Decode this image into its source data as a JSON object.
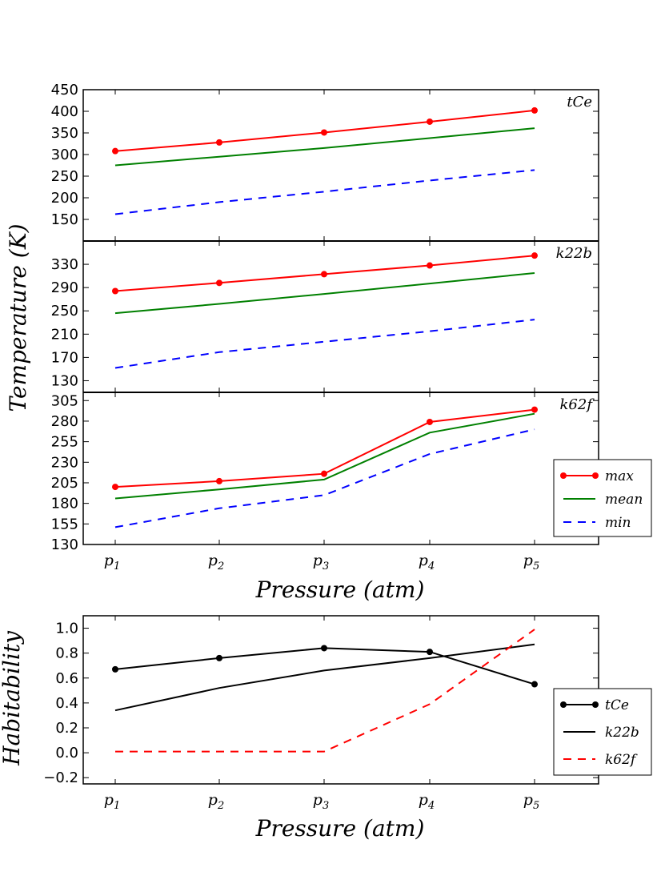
{
  "chart_data": [
    {
      "type": "line",
      "title": "",
      "panel_label": "tCe",
      "xlabel": "",
      "ylabel": "",
      "categories": [
        "p1",
        "p2",
        "p3",
        "p4",
        "p5"
      ],
      "ylim": [
        100,
        450
      ],
      "yticks": [
        150,
        200,
        250,
        300,
        350,
        400,
        450
      ],
      "series": [
        {
          "name": "max",
          "values": [
            308,
            328,
            351,
            376,
            402
          ],
          "color": "#ff0000",
          "style": "solid-marker"
        },
        {
          "name": "mean",
          "values": [
            275,
            295,
            315,
            338,
            361
          ],
          "color": "#008000",
          "style": "solid"
        },
        {
          "name": "min",
          "values": [
            162,
            190,
            214,
            240,
            264
          ],
          "color": "#0000ff",
          "style": "dashed"
        }
      ]
    },
    {
      "type": "line",
      "title": "",
      "panel_label": "k22b",
      "xlabel": "",
      "ylabel": "Temperature (K)",
      "categories": [
        "p1",
        "p2",
        "p3",
        "p4",
        "p5"
      ],
      "ylim": [
        110,
        370
      ],
      "yticks": [
        130,
        170,
        210,
        250,
        290,
        330
      ],
      "series": [
        {
          "name": "max",
          "values": [
            284,
            298,
            313,
            328,
            345
          ],
          "color": "#ff0000",
          "style": "solid-marker"
        },
        {
          "name": "mean",
          "values": [
            246,
            262,
            279,
            297,
            315
          ],
          "color": "#008000",
          "style": "solid"
        },
        {
          "name": "min",
          "values": [
            152,
            179,
            197,
            215,
            235
          ],
          "color": "#0000ff",
          "style": "dashed"
        }
      ]
    },
    {
      "type": "line",
      "title": "",
      "panel_label": "k62f",
      "xlabel": "Pressure (atm)",
      "ylabel": "",
      "categories": [
        "p1",
        "p2",
        "p3",
        "p4",
        "p5"
      ],
      "ylim": [
        130,
        315
      ],
      "yticks": [
        130,
        155,
        180,
        205,
        230,
        255,
        280,
        305
      ],
      "legend": "lower-right",
      "series": [
        {
          "name": "max",
          "values": [
            200,
            207,
            216,
            279,
            294
          ],
          "color": "#ff0000",
          "style": "solid-marker"
        },
        {
          "name": "mean",
          "values": [
            186,
            197,
            209,
            266,
            289
          ],
          "color": "#008000",
          "style": "solid"
        },
        {
          "name": "min",
          "values": [
            151,
            174,
            190,
            240,
            270
          ],
          "color": "#0000ff",
          "style": "dashed"
        }
      ]
    },
    {
      "type": "line",
      "title": "",
      "xlabel": "Pressure (atm)",
      "ylabel": "Habitability",
      "categories": [
        "p1",
        "p2",
        "p3",
        "p4",
        "p5"
      ],
      "ylim": [
        -0.25,
        1.1
      ],
      "yticks": [
        -0.2,
        0.0,
        0.2,
        0.4,
        0.6,
        0.8,
        1.0
      ],
      "ytick_labels": [
        "−0.2",
        "0.0",
        "0.2",
        "0.4",
        "0.6",
        "0.8",
        "1.0"
      ],
      "legend": "lower-right",
      "series": [
        {
          "name": "tCe",
          "values": [
            0.67,
            0.76,
            0.84,
            0.81,
            0.55
          ],
          "color": "#000000",
          "style": "solid-marker"
        },
        {
          "name": "k22b",
          "values": [
            0.34,
            0.52,
            0.66,
            0.76,
            0.87
          ],
          "color": "#000000",
          "style": "solid"
        },
        {
          "name": "k62f",
          "values": [
            0.01,
            0.01,
            0.01,
            0.39,
            0.99
          ],
          "color": "#ff0000",
          "style": "dashed"
        }
      ]
    }
  ]
}
